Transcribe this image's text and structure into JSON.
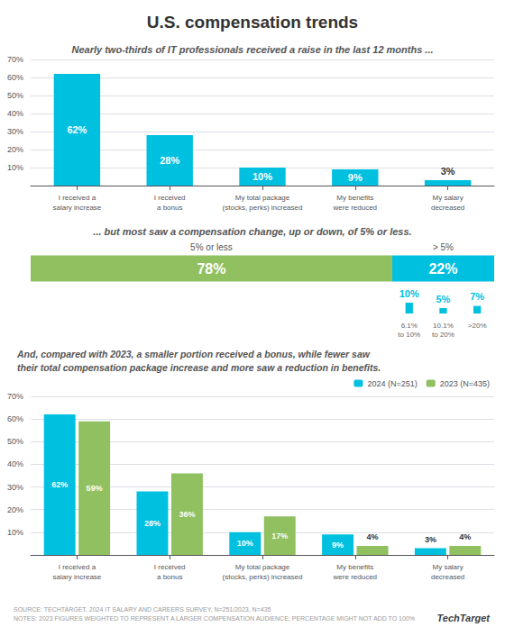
{
  "chart_data": [
    {
      "type": "bar",
      "title": "U.S. compensation trends",
      "subtitle": "Nearly two-thirds of IT professionals received a raise in the last 12 months ...",
      "categories": [
        "I received a\nsalary increase",
        "I received\na bonus",
        "My total package\n(stocks, perks) increased",
        "My benefits\nwere reduced",
        "My salary\ndecreased"
      ],
      "values": [
        62,
        28,
        10,
        9,
        3
      ],
      "value_labels": [
        "62%",
        "28%",
        "10%",
        "9%",
        "3%"
      ],
      "color": "#00c0e0",
      "ylim": [
        0,
        70
      ],
      "yticks": [
        {
          "value": 10,
          "label": "10%"
        },
        {
          "value": 20,
          "label": "20%"
        },
        {
          "value": 30,
          "label": "30%"
        },
        {
          "value": 40,
          "label": "40%"
        },
        {
          "value": 50,
          "label": "50%"
        },
        {
          "value": 60,
          "label": "60%"
        },
        {
          "value": 70,
          "label": "70%"
        }
      ],
      "grid": true,
      "data_labels": true
    },
    {
      "type": "bar",
      "subtitle": "... but most saw a compensation change, up or down, of 5% or less.",
      "orientation": "horizontal",
      "stacked": true,
      "tick_labels": false,
      "data_labels": true,
      "categories": [
        null
      ],
      "xlim": [
        0,
        100
      ],
      "series": [
        {
          "name": "5% or less",
          "color": "#90c060",
          "values": [
            78
          ],
          "value_labels": [
            "78%"
          ]
        },
        {
          "name": "> 5%",
          "color": "#00c0e0",
          "values": [
            22
          ],
          "value_labels": [
            "22%"
          ]
        }
      ],
      "breakdown": {
        "categories": [
          "6.1%\nto 10%",
          "10.1%\nto 20%",
          ">20%"
        ],
        "values": [
          10,
          5,
          7
        ],
        "value_labels": [
          "10%",
          "5%",
          "7%"
        ],
        "color": "#00c0e0"
      }
    },
    {
      "type": "bar",
      "subtitle": "And, compared with 2023, a smaller portion received a bonus, while fewer saw\ntheir total compensation package increase and more saw a reduction in benefits.",
      "categories": [
        "I received a\nsalary increase",
        "I received\na bonus",
        "My total package\n(stocks, perks) increased",
        "My benefits\nwere reduced",
        "My salary\ndecreased"
      ],
      "series": [
        {
          "name": "2024 (N=251)",
          "color": "#00c0e0",
          "values": [
            62,
            28,
            10,
            9,
            3
          ],
          "value_labels": [
            "62%",
            "28%",
            "10%",
            "9%",
            "3%"
          ]
        },
        {
          "name": "2023 (N=435)",
          "color": "#90c060",
          "values": [
            59,
            36,
            17,
            4,
            4
          ],
          "value_labels": [
            "59%",
            "36%",
            "17%",
            "4%",
            "4%"
          ]
        }
      ],
      "ylim": [
        0,
        70
      ],
      "yticks": [
        {
          "value": 10,
          "label": "10%"
        },
        {
          "value": 20,
          "label": "20%"
        },
        {
          "value": 30,
          "label": "30%"
        },
        {
          "value": 40,
          "label": "40%"
        },
        {
          "value": 50,
          "label": "50%"
        },
        {
          "value": 60,
          "label": "60%"
        },
        {
          "value": 70,
          "label": "70%"
        }
      ],
      "grid": true,
      "legend": "upper right",
      "data_labels": true,
      "annotations": [
        "SOURCE: TECHTARGET, 2024 IT SALARY AND CAREERS SURVEY, N=251/2023, N=435\nNOTES: 2023 FIGURES WEIGHTED TO REPRESENT A LARGER COMPENSATION AUDIENCE; PERCENTAGE MIGHT NOT ADD TO 100%",
        "TechTarget"
      ]
    }
  ]
}
